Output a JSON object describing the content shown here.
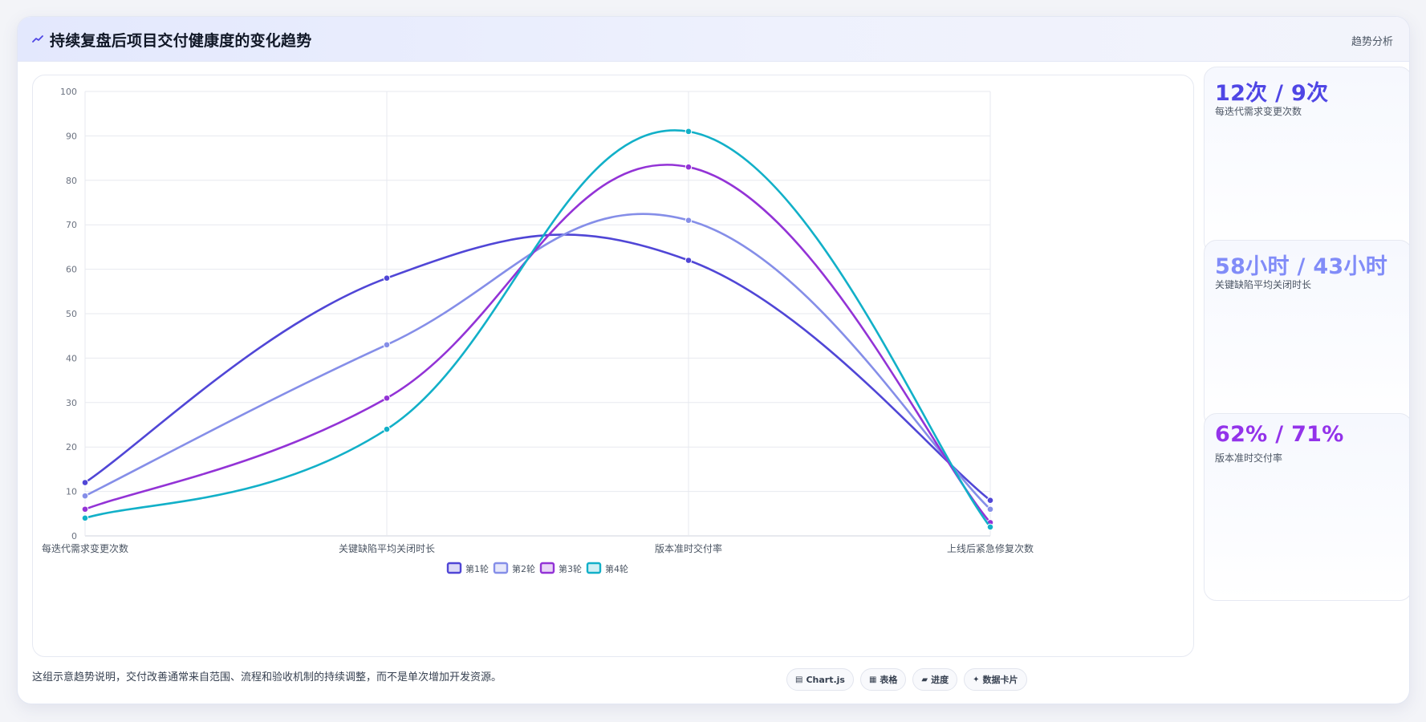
{
  "header": {
    "title": "持续复盘后项目交付健康度的变化趋势",
    "tag": "趋势分析"
  },
  "chart_data": {
    "type": "line",
    "categories": [
      "每迭代需求变更次数",
      "关键缺陷平均关闭时长",
      "版本准时交付率",
      "上线后紧急修复次数"
    ],
    "series": [
      {
        "name": "第1轮",
        "color": "#5046d6",
        "values": [
          12,
          58,
          62,
          8
        ]
      },
      {
        "name": "第2轮",
        "color": "#858ee8",
        "values": [
          9,
          43,
          71,
          6
        ]
      },
      {
        "name": "第3轮",
        "color": "#9333d6",
        "values": [
          6,
          31,
          83,
          3
        ]
      },
      {
        "name": "第4轮",
        "color": "#12b0c8",
        "values": [
          4,
          24,
          91,
          2
        ]
      }
    ],
    "ylim": [
      0,
      100
    ],
    "yticks": [
      0,
      10,
      20,
      30,
      40,
      50,
      60,
      70,
      80,
      90,
      100
    ],
    "grid": true,
    "legend": "bottom"
  },
  "stats": [
    {
      "value": "12次 / 9次",
      "label": "每迭代需求变更次数",
      "color": "#4f46e5"
    },
    {
      "value": "58小时 / 43小时",
      "label": "关键缺陷平均关闭时长",
      "color": "#818cf8"
    },
    {
      "value": "62% / 71%",
      "label": "版本准时交付率",
      "color": "#9333ea"
    }
  ],
  "footer": {
    "note": "这组示意趋势说明，交付改善通常来自范围、流程和验收机制的持续调整，而不是单次增加开发资源。",
    "pills": [
      {
        "icon": "chart-icon",
        "glyph": "▤",
        "label": "Chart.js"
      },
      {
        "icon": "table-icon",
        "glyph": "▦",
        "label": "表格"
      },
      {
        "icon": "progress-icon",
        "glyph": "▰",
        "label": "进度"
      },
      {
        "icon": "card-icon",
        "glyph": "✦",
        "label": "数据卡片"
      }
    ]
  }
}
